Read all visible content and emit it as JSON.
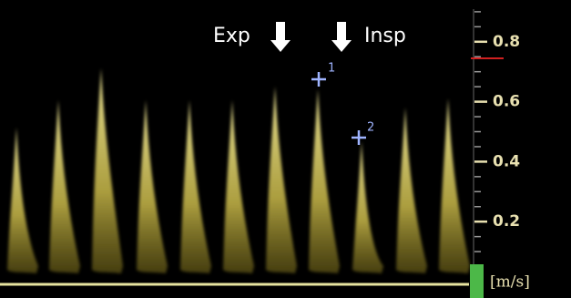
{
  "annotations": {
    "expiration": "Exp",
    "inspiration": "Insp",
    "marker_1": "1",
    "marker_2": "2"
  },
  "scale": {
    "ticks": [
      0.8,
      0.6,
      0.4,
      0.2
    ],
    "unit": "[m/s]"
  }
}
